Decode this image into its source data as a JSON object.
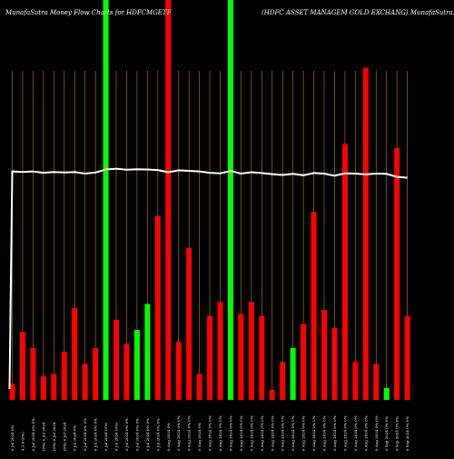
{
  "header": {
    "left_title": "MunafaSutra  Money Flow  Charts for HDFCMGETF",
    "right_title": "(HDFC ASSET MANAGEM GOLD EXCHANG) MunafaSutra.com"
  },
  "colors": {
    "background": "#000000",
    "positive": "#00ff00",
    "negative": "#ff0000",
    "gridline": "#b8860b",
    "line": "#ffffff",
    "text": "#ffffff"
  },
  "chart_data": {
    "type": "bar",
    "title": "MunafaSutra  Money Flow  Charts for HDFCMGETF",
    "grid": true,
    "ylim": [
      0,
      100
    ],
    "bars": [
      {
        "label": "09 Jul 2024",
        "value": 4,
        "direction": "down"
      },
      {
        "label": "10 Jul 2024",
        "value": 17,
        "direction": "down"
      },
      {
        "label": "11 Jul 2024",
        "value": 13,
        "direction": "down"
      },
      {
        "label": "12 Jul 2024",
        "value": 6,
        "direction": "down"
      },
      {
        "label": "15 Jul 2024",
        "value": 6.5,
        "direction": "down"
      },
      {
        "label": "16 Jul 2024",
        "value": 12,
        "direction": "down"
      },
      {
        "label": "18 Jul 2024",
        "value": 23,
        "direction": "down"
      },
      {
        "label": "19 Jul 2024",
        "value": 9,
        "direction": "down"
      },
      {
        "label": "22 Jul 2024",
        "value": 13,
        "direction": "down"
      },
      {
        "label": "23 Jul 2024",
        "value": 100,
        "direction": "up"
      },
      {
        "label": "24 Jul 2024",
        "value": 20,
        "direction": "down"
      },
      {
        "label": "25 Jul 2024",
        "value": 14,
        "direction": "down"
      },
      {
        "label": "26 Jul 2024",
        "value": 17.5,
        "direction": "up"
      },
      {
        "label": "29 Jul 2024",
        "value": 24,
        "direction": "up"
      },
      {
        "label": "30 Jul 2024",
        "value": 46,
        "direction": "down"
      },
      {
        "label": "31 Jul 2024",
        "value": 100,
        "direction": "down"
      },
      {
        "label": "01 Aug 2024",
        "value": 14.5,
        "direction": "down"
      },
      {
        "label": "02 Aug 2024",
        "value": 38,
        "direction": "down"
      },
      {
        "label": "05 Aug 2024",
        "value": 6.5,
        "direction": "down"
      },
      {
        "label": "06 Aug 2024",
        "value": 21,
        "direction": "down"
      },
      {
        "label": "07 Aug 2024",
        "value": 24.5,
        "direction": "down"
      },
      {
        "label": "08 Aug 2024",
        "value": 100,
        "direction": "up"
      },
      {
        "label": "09 Aug 2024",
        "value": 21.5,
        "direction": "down"
      },
      {
        "label": "12 Aug 2024",
        "value": 24.5,
        "direction": "down"
      },
      {
        "label": "13 Aug 2024",
        "value": 21,
        "direction": "down"
      },
      {
        "label": "14 Aug 2024",
        "value": 2.5,
        "direction": "down"
      },
      {
        "label": "16 Aug 2024",
        "value": 9.5,
        "direction": "down"
      },
      {
        "label": "19 Aug 2024",
        "value": 13,
        "direction": "up"
      },
      {
        "label": "20 Aug 2024",
        "value": 19,
        "direction": "down"
      },
      {
        "label": "21 Aug 2024",
        "value": 47,
        "direction": "down"
      },
      {
        "label": "22 Aug 2024",
        "value": 22.5,
        "direction": "down"
      },
      {
        "label": "23 Aug 2024",
        "value": 18,
        "direction": "down"
      },
      {
        "label": "26 Aug 2024",
        "value": 64,
        "direction": "down"
      },
      {
        "label": "27 Aug 2024",
        "value": 9.5,
        "direction": "down"
      },
      {
        "label": "28 Aug 2024",
        "value": 83,
        "direction": "down"
      },
      {
        "label": "29 Aug 2024",
        "value": 9,
        "direction": "down"
      },
      {
        "label": "30 Aug 2024",
        "value": 3,
        "direction": "up"
      },
      {
        "label": "02 Sep 2024",
        "value": 63,
        "direction": "down"
      },
      {
        "label": "03 Sep 2024",
        "value": 21,
        "direction": "down"
      }
    ],
    "price_line": [
      66.8,
      66.6,
      66.8,
      66.3,
      66.6,
      66.4,
      66.6,
      66.0,
      66.4,
      67.5,
      67.8,
      67.4,
      67.6,
      67.5,
      67.3,
      66.5,
      67.2,
      67.0,
      66.8,
      66.3,
      66.1,
      67.0,
      66.0,
      66.5,
      66.2,
      65.8,
      65.5,
      65.9,
      65.4,
      66.2,
      66.0,
      65.2,
      66.1,
      66.0,
      65.7,
      66.0,
      65.9,
      64.8,
      64.5
    ],
    "tick_labels": [
      "0 Jul 2024 0%",
      "4.1 0 (0%)",
      "0 Jul 2024 0% 0%",
      "(0%) 0 Jul 2024",
      "(0%) 0 Jul 2024",
      "(0%) 0 Jul 2024",
      "0 Jul 2024 0%",
      "0 Jul 2024 0% 0%",
      "0 Jul 2024 0% 0%",
      "0 Jul 2024 (0%)",
      "0 Jul 2024 (0%)",
      "0 Jul 2024 0% 0%",
      "0 Jul 2024 0% 0%",
      "0 Jul 2024 0% 0%",
      "0 Jul 2024 0% 0%",
      "0 Aug 2024 0%",
      "0 Aug 2024 0% 0%",
      "0 Aug 2024 0% 0%",
      "0 Aug 2024 0%",
      "0 Aug 2024 0% 0%",
      "0 Aug 2024 0% 0%",
      "0 Aug 2024 0% 0%",
      "0 Aug 2024 0% 0%",
      "0 Aug 2024 0% 0%",
      "0 Aug 2024 0% 0%",
      "0 Aug 2024 0% 0%",
      "0 Aug 2024 0% 0%",
      "0 Aug 2024 0% 0%",
      "0 Aug 2024 0% 0%",
      "0 Aug 2024 0% 0%",
      "0 Aug 2024 0% 0%",
      "0 Aug 2024 0% 0%",
      "0 Aug 2024 0% 0%",
      "0 Aug 2024 0% 0%",
      "0 Aug 2024 0% 0%",
      "0 Aug 2024 0% 0%",
      "0 Sep 2024 0% 0%",
      "0 Sep 2024 0% 0%",
      "0 Sep 2024 0% 0%"
    ]
  }
}
